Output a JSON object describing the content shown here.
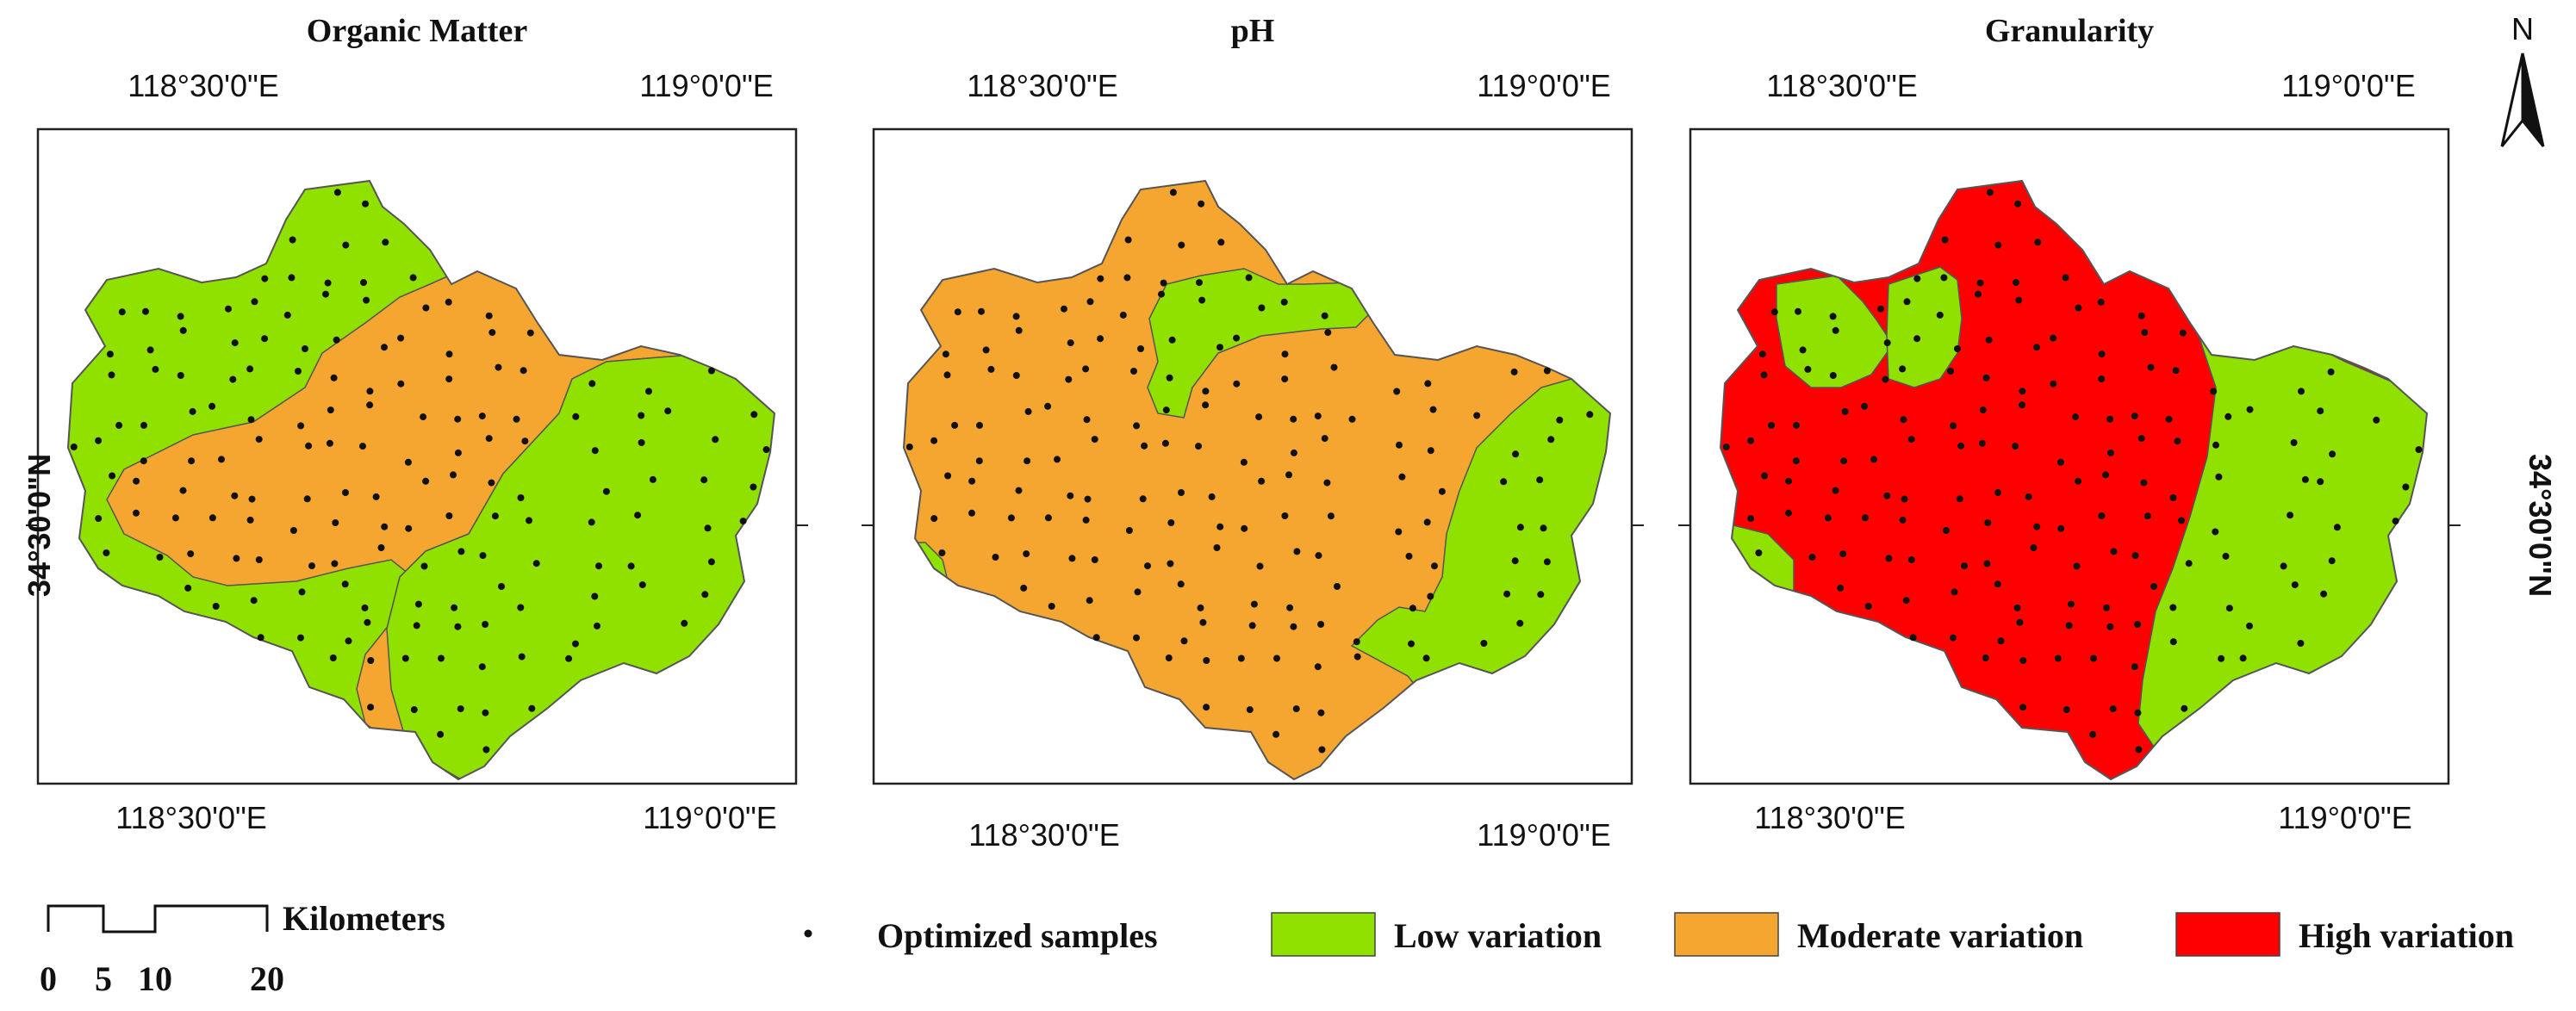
{
  "panels": [
    {
      "title": "Organic Matter",
      "lon_left": "118°30'0\"E",
      "lon_right": "119°0'0\"E",
      "lat": "34°30'0\"N"
    },
    {
      "title": "pH",
      "lon_left": "118°30'0\"E",
      "lon_right": "119°0'0\"E",
      "lat": "34°30'0\"N"
    },
    {
      "title": "Granularity",
      "lon_left": "118°30'0\"E",
      "lon_right": "119°0'0\"E",
      "lat": "34°30'0\"N"
    }
  ],
  "north_arrow": {
    "label": "N"
  },
  "scale_bar": {
    "unit": "Kilometers",
    "ticks": [
      "0",
      "5",
      "10",
      "20"
    ]
  },
  "legend": {
    "samples_label": "Optimized samples",
    "items": [
      {
        "label": "Low variation",
        "color": "#90e000"
      },
      {
        "label": "Moderate variation",
        "color": "#f5a630"
      },
      {
        "label": "High variation",
        "color": "#ff0000"
      }
    ]
  }
}
